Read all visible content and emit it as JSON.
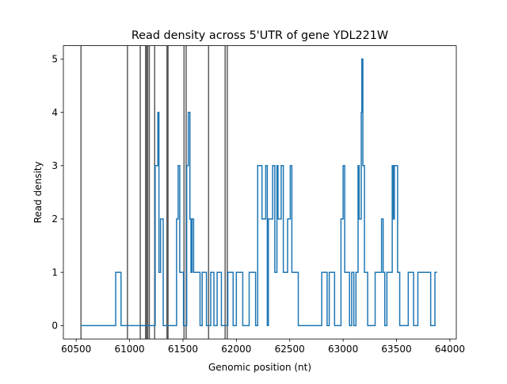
{
  "chart_data": {
    "type": "line",
    "title": "Read density across 5'UTR of gene YDL221W",
    "xlabel": "Genomic position (nt)",
    "ylabel": "Read density",
    "xlim": [
      60380,
      64060
    ],
    "ylim": [
      -0.25,
      5.25
    ],
    "grid": false,
    "x_ticks": [
      60500,
      61000,
      61500,
      62000,
      62500,
      63000,
      63500,
      64000
    ],
    "x_tick_labels": [
      "60500",
      "61000",
      "61500",
      "62000",
      "62500",
      "63000",
      "63500",
      "64000"
    ],
    "y_ticks": [
      0,
      1,
      2,
      3,
      4,
      5
    ],
    "y_tick_labels": [
      "0",
      "1",
      "2",
      "3",
      "4",
      "5"
    ],
    "series": [
      {
        "line_style": "step",
        "color": "#1f77b4",
        "points": [
          [
            60545,
            0
          ],
          [
            60870,
            0
          ],
          [
            60870,
            1
          ],
          [
            60920,
            1
          ],
          [
            60920,
            0
          ],
          [
            61240,
            0
          ],
          [
            61240,
            3
          ],
          [
            61265,
            3
          ],
          [
            61265,
            4
          ],
          [
            61275,
            4
          ],
          [
            61275,
            1
          ],
          [
            61290,
            1
          ],
          [
            61290,
            2
          ],
          [
            61315,
            2
          ],
          [
            61315,
            0
          ],
          [
            61440,
            0
          ],
          [
            61440,
            2
          ],
          [
            61455,
            2
          ],
          [
            61455,
            3
          ],
          [
            61470,
            3
          ],
          [
            61470,
            1
          ],
          [
            61505,
            1
          ],
          [
            61505,
            0
          ],
          [
            61535,
            0
          ],
          [
            61535,
            3
          ],
          [
            61550,
            3
          ],
          [
            61550,
            4
          ],
          [
            61565,
            4
          ],
          [
            61565,
            2
          ],
          [
            61575,
            2
          ],
          [
            61575,
            1
          ],
          [
            61585,
            1
          ],
          [
            61585,
            2
          ],
          [
            61600,
            2
          ],
          [
            61600,
            1
          ],
          [
            61660,
            1
          ],
          [
            61660,
            0
          ],
          [
            61680,
            0
          ],
          [
            61680,
            1
          ],
          [
            61720,
            1
          ],
          [
            61720,
            0
          ],
          [
            61760,
            0
          ],
          [
            61760,
            1
          ],
          [
            61790,
            1
          ],
          [
            61790,
            0
          ],
          [
            61820,
            0
          ],
          [
            61820,
            1
          ],
          [
            61860,
            1
          ],
          [
            61860,
            0
          ],
          [
            61920,
            0
          ],
          [
            61920,
            1
          ],
          [
            61970,
            1
          ],
          [
            61970,
            0
          ],
          [
            62000,
            0
          ],
          [
            62000,
            1
          ],
          [
            62060,
            1
          ],
          [
            62060,
            0
          ],
          [
            62120,
            0
          ],
          [
            62120,
            1
          ],
          [
            62180,
            1
          ],
          [
            62180,
            0
          ],
          [
            62200,
            0
          ],
          [
            62200,
            3
          ],
          [
            62240,
            3
          ],
          [
            62240,
            2
          ],
          [
            62275,
            2
          ],
          [
            62275,
            3
          ],
          [
            62290,
            3
          ],
          [
            62290,
            0
          ],
          [
            62300,
            0
          ],
          [
            62300,
            2
          ],
          [
            62340,
            2
          ],
          [
            62340,
            3
          ],
          [
            62360,
            3
          ],
          [
            62360,
            1
          ],
          [
            62380,
            1
          ],
          [
            62380,
            3
          ],
          [
            62390,
            3
          ],
          [
            62390,
            2
          ],
          [
            62420,
            2
          ],
          [
            62420,
            3
          ],
          [
            62440,
            3
          ],
          [
            62440,
            1
          ],
          [
            62480,
            1
          ],
          [
            62480,
            2
          ],
          [
            62505,
            2
          ],
          [
            62505,
            3
          ],
          [
            62520,
            3
          ],
          [
            62520,
            1
          ],
          [
            62580,
            1
          ],
          [
            62580,
            0
          ],
          [
            62800,
            0
          ],
          [
            62800,
            1
          ],
          [
            62850,
            1
          ],
          [
            62850,
            0
          ],
          [
            62870,
            0
          ],
          [
            62870,
            1
          ],
          [
            62920,
            1
          ],
          [
            62920,
            0
          ],
          [
            62980,
            0
          ],
          [
            62980,
            2
          ],
          [
            63000,
            2
          ],
          [
            63000,
            3
          ],
          [
            63015,
            3
          ],
          [
            63015,
            1
          ],
          [
            63060,
            1
          ],
          [
            63060,
            0
          ],
          [
            63080,
            0
          ],
          [
            63080,
            1
          ],
          [
            63100,
            1
          ],
          [
            63100,
            0
          ],
          [
            63120,
            0
          ],
          [
            63120,
            1
          ],
          [
            63140,
            1
          ],
          [
            63140,
            3
          ],
          [
            63150,
            3
          ],
          [
            63150,
            2
          ],
          [
            63170,
            2
          ],
          [
            63170,
            4
          ],
          [
            63175,
            4
          ],
          [
            63175,
            5
          ],
          [
            63185,
            5
          ],
          [
            63185,
            3
          ],
          [
            63200,
            3
          ],
          [
            63200,
            1
          ],
          [
            63230,
            1
          ],
          [
            63230,
            0
          ],
          [
            63300,
            0
          ],
          [
            63300,
            1
          ],
          [
            63360,
            1
          ],
          [
            63360,
            2
          ],
          [
            63375,
            2
          ],
          [
            63375,
            1
          ],
          [
            63390,
            1
          ],
          [
            63390,
            0
          ],
          [
            63410,
            0
          ],
          [
            63410,
            1
          ],
          [
            63460,
            1
          ],
          [
            63460,
            3
          ],
          [
            63470,
            3
          ],
          [
            63470,
            2
          ],
          [
            63480,
            2
          ],
          [
            63480,
            3
          ],
          [
            63510,
            3
          ],
          [
            63510,
            1
          ],
          [
            63530,
            1
          ],
          [
            63530,
            0
          ],
          [
            63610,
            0
          ],
          [
            63610,
            1
          ],
          [
            63660,
            1
          ],
          [
            63660,
            0
          ],
          [
            63700,
            0
          ],
          [
            63700,
            1
          ],
          [
            63820,
            1
          ],
          [
            63820,
            0
          ],
          [
            63860,
            0
          ],
          [
            63860,
            1
          ],
          [
            63880,
            1
          ]
        ]
      }
    ],
    "vertical_lines": {
      "color": "#404040",
      "x": [
        60545,
        60980,
        61100,
        61150,
        61160,
        61170,
        61185,
        61235,
        61350,
        61360,
        61510,
        61530,
        61740,
        61895,
        61915
      ]
    }
  }
}
